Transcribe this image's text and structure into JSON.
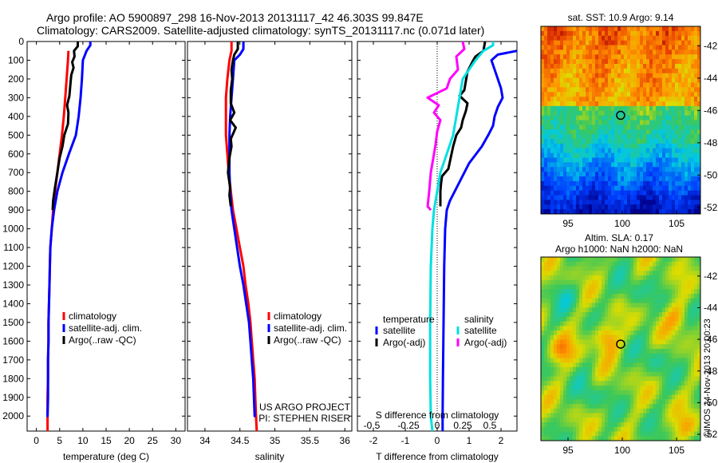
{
  "header": {
    "title_line1": "Argo profile: AO 5900897_298 16-Nov-2013 20131117_42 46.303S 99.847E",
    "title_line2": "Climatology: CARS2009. Satellite-adjusted climatology: synTS_20131117.nc (0.071d later)"
  },
  "chart_data": [
    {
      "type": "line",
      "xlabel": "temperature (deg C)",
      "ylabel": "",
      "xlim": [
        -2,
        32
      ],
      "ylim": [
        2080,
        0
      ],
      "xticks": [
        0,
        5,
        10,
        15,
        20,
        25,
        30
      ],
      "yticks": [
        0,
        100,
        200,
        300,
        400,
        500,
        600,
        700,
        800,
        900,
        1000,
        1100,
        1200,
        1300,
        1400,
        1500,
        1600,
        1700,
        1800,
        1900,
        2000
      ],
      "legend": [
        "climatology",
        "satellite-adj. clim.",
        "Argo(..raw -QC)"
      ],
      "series": [
        {
          "name": "climatology",
          "color": "#ff0000",
          "points": [
            [
              6.9,
              50
            ],
            [
              6.8,
              100
            ],
            [
              6.5,
              200
            ],
            [
              6.2,
              300
            ],
            [
              5.9,
              400
            ],
            [
              5.5,
              500
            ],
            [
              5.0,
              600
            ],
            [
              4.5,
              700
            ],
            [
              4.0,
              800
            ],
            [
              3.6,
              900
            ],
            [
              3.3,
              1000
            ],
            [
              3.0,
              1100
            ],
            [
              2.9,
              1200
            ],
            [
              2.8,
              1300
            ],
            [
              2.7,
              1400
            ],
            [
              2.6,
              1500
            ],
            [
              2.6,
              1600
            ],
            [
              2.5,
              1700
            ],
            [
              2.5,
              1800
            ],
            [
              2.4,
              1900
            ],
            [
              2.4,
              2000
            ],
            [
              2.4,
              2080
            ]
          ]
        },
        {
          "name": "satellite-adj. clim.",
          "color": "#0000ff",
          "points": [
            [
              11.6,
              0
            ],
            [
              11.6,
              20
            ],
            [
              10.8,
              50
            ],
            [
              10.0,
              100
            ],
            [
              9.8,
              200
            ],
            [
              9.5,
              300
            ],
            [
              9.1,
              400
            ],
            [
              8.5,
              500
            ],
            [
              7.0,
              600
            ],
            [
              5.6,
              700
            ],
            [
              4.5,
              800
            ],
            [
              3.8,
              900
            ],
            [
              3.3,
              1000
            ],
            [
              3.0,
              1100
            ],
            [
              2.9,
              1200
            ],
            [
              2.8,
              1300
            ],
            [
              2.7,
              1400
            ],
            [
              2.6,
              1500
            ],
            [
              2.6,
              1600
            ],
            [
              2.5,
              1700
            ],
            [
              2.5,
              1800
            ],
            [
              2.5,
              1900
            ],
            [
              2.4,
              2000
            ],
            [
              2.4,
              1970
            ]
          ]
        },
        {
          "name": "Argo(..raw -QC)",
          "color": "#000000",
          "points": [
            [
              8.9,
              0
            ],
            [
              8.9,
              25
            ],
            [
              8.1,
              50
            ],
            [
              8.2,
              80
            ],
            [
              7.7,
              110
            ],
            [
              8.0,
              140
            ],
            [
              7.5,
              180
            ],
            [
              7.3,
              230
            ],
            [
              7.1,
              290
            ],
            [
              6.6,
              340
            ],
            [
              6.9,
              380
            ],
            [
              6.8,
              440
            ],
            [
              6.0,
              500
            ],
            [
              5.6,
              560
            ],
            [
              5.0,
              620
            ],
            [
              4.5,
              700
            ],
            [
              4.0,
              780
            ],
            [
              3.6,
              850
            ],
            [
              3.5,
              900
            ]
          ]
        }
      ]
    },
    {
      "type": "line",
      "xlabel": "salinity",
      "ylabel": "",
      "xlim": [
        33.75,
        36.1
      ],
      "ylim": [
        2080,
        0
      ],
      "xticks": [
        34,
        34.5,
        35,
        35.5,
        36
      ],
      "legend": [
        "climatology",
        "satellite-adj. clim.",
        "Argo(..raw -QC)"
      ],
      "annotation_line1": "US ARGO PROJECT",
      "annotation_line2": "PI: STEPHEN RISER",
      "series": [
        {
          "name": "climatology",
          "color": "#ff0000",
          "points": [
            [
              34.38,
              0
            ],
            [
              34.38,
              50
            ],
            [
              34.35,
              100
            ],
            [
              34.32,
              200
            ],
            [
              34.3,
              300
            ],
            [
              34.3,
              400
            ],
            [
              34.3,
              500
            ],
            [
              34.32,
              600
            ],
            [
              34.34,
              700
            ],
            [
              34.37,
              800
            ],
            [
              34.4,
              900
            ],
            [
              34.45,
              1000
            ],
            [
              34.5,
              1100
            ],
            [
              34.55,
              1200
            ],
            [
              34.58,
              1300
            ],
            [
              34.62,
              1400
            ],
            [
              34.65,
              1500
            ],
            [
              34.67,
              1600
            ],
            [
              34.69,
              1700
            ],
            [
              34.71,
              1800
            ],
            [
              34.72,
              1900
            ],
            [
              34.73,
              2000
            ],
            [
              34.74,
              2080
            ]
          ]
        },
        {
          "name": "satellite-adj. clim.",
          "color": "#0000ff",
          "points": [
            [
              34.55,
              0
            ],
            [
              34.55,
              40
            ],
            [
              34.5,
              70
            ],
            [
              34.42,
              100
            ],
            [
              34.4,
              200
            ],
            [
              34.38,
              300
            ],
            [
              34.36,
              400
            ],
            [
              34.35,
              500
            ],
            [
              34.35,
              600
            ],
            [
              34.35,
              700
            ],
            [
              34.36,
              800
            ],
            [
              34.38,
              900
            ],
            [
              34.42,
              1000
            ],
            [
              34.46,
              1100
            ],
            [
              34.5,
              1200
            ],
            [
              34.55,
              1300
            ],
            [
              34.59,
              1400
            ],
            [
              34.63,
              1500
            ],
            [
              34.65,
              1600
            ],
            [
              34.67,
              1700
            ],
            [
              34.69,
              1800
            ],
            [
              34.7,
              1900
            ],
            [
              34.71,
              2000
            ],
            [
              34.71,
              1980
            ]
          ]
        },
        {
          "name": "Argo(..raw -QC)",
          "color": "#000000",
          "points": [
            [
              34.47,
              0
            ],
            [
              34.47,
              40
            ],
            [
              34.42,
              70
            ],
            [
              34.4,
              100
            ],
            [
              34.38,
              150
            ],
            [
              34.39,
              200
            ],
            [
              34.37,
              260
            ],
            [
              34.37,
              330
            ],
            [
              34.42,
              380
            ],
            [
              34.36,
              420
            ],
            [
              34.44,
              460
            ],
            [
              34.37,
              520
            ],
            [
              34.38,
              560
            ],
            [
              34.35,
              620
            ],
            [
              34.33,
              700
            ],
            [
              34.36,
              780
            ],
            [
              34.35,
              820
            ],
            [
              34.37,
              880
            ]
          ]
        }
      ]
    },
    {
      "type": "line",
      "xlabel": "T difference from climatology",
      "ylabel": "",
      "xlim": [
        -2.5,
        2.5
      ],
      "ylim": [
        2080,
        0
      ],
      "xticks": [
        -2,
        -1,
        0,
        1,
        2
      ],
      "top_xlabel": "S difference from climatology",
      "top_xticks": [
        "-0.5",
        "-0.25",
        "0",
        "0.25",
        "0.5"
      ],
      "legend_title_left": "temperature",
      "legend_title_right": "salinity",
      "legend": [
        "satellite",
        "Argo(-adj)",
        "satellite",
        "Argo(-adj)"
      ],
      "series": [
        {
          "name": "satellite",
          "color": "#0000ff",
          "points": [
            [
              2.5,
              50
            ],
            [
              1.9,
              70
            ],
            [
              1.7,
              100
            ],
            [
              1.8,
              150
            ],
            [
              1.9,
              200
            ],
            [
              2.0,
              250
            ],
            [
              2.05,
              300
            ],
            [
              1.9,
              350
            ],
            [
              1.8,
              400
            ],
            [
              1.75,
              450
            ],
            [
              1.6,
              500
            ],
            [
              1.4,
              560
            ],
            [
              1.0,
              650
            ],
            [
              0.7,
              750
            ],
            [
              0.4,
              850
            ],
            [
              0.3,
              900
            ],
            [
              0.25,
              1000
            ],
            [
              0.22,
              1200
            ],
            [
              0.2,
              1500
            ],
            [
              0.18,
              1800
            ],
            [
              0.17,
              2000
            ],
            [
              0.17,
              2080
            ]
          ]
        },
        {
          "name": "Argo(-adj)",
          "color": "#000000",
          "points": [
            [
              1.5,
              0
            ],
            [
              1.45,
              50
            ],
            [
              1.2,
              80
            ],
            [
              1.1,
              110
            ],
            [
              0.95,
              160
            ],
            [
              0.9,
              210
            ],
            [
              0.85,
              260
            ],
            [
              0.7,
              290
            ],
            [
              0.95,
              330
            ],
            [
              0.9,
              370
            ],
            [
              0.8,
              420
            ],
            [
              0.75,
              460
            ],
            [
              0.6,
              500
            ],
            [
              0.5,
              560
            ],
            [
              0.45,
              600
            ],
            [
              0.35,
              680
            ],
            [
              0.15,
              720
            ],
            [
              0.12,
              760
            ],
            [
              0.1,
              800
            ],
            [
              0.1,
              880
            ]
          ]
        },
        {
          "name": "satellite",
          "color": "#00e0e0",
          "points": [
            [
              1.75,
              0
            ],
            [
              1.75,
              20
            ],
            [
              1.45,
              50
            ],
            [
              1.2,
              100
            ],
            [
              0.8,
              200
            ],
            [
              0.7,
              300
            ],
            [
              0.6,
              400
            ],
            [
              0.5,
              500
            ],
            [
              0.3,
              600
            ],
            [
              0.1,
              700
            ],
            [
              0.0,
              800
            ],
            [
              -0.1,
              900
            ],
            [
              -0.15,
              1000
            ],
            [
              -0.2,
              1200
            ],
            [
              -0.22,
              1500
            ],
            [
              -0.22,
              1800
            ],
            [
              -0.2,
              2000
            ],
            [
              -0.15,
              2080
            ]
          ]
        },
        {
          "name": "Argo(-adj)",
          "color": "#ff00ff",
          "points": [
            [
              0.8,
              0
            ],
            [
              0.85,
              40
            ],
            [
              0.6,
              80
            ],
            [
              0.65,
              150
            ],
            [
              0.4,
              200
            ],
            [
              0.3,
              250
            ],
            [
              -0.3,
              300
            ],
            [
              0.05,
              340
            ],
            [
              -0.1,
              380
            ],
            [
              0.1,
              420
            ],
            [
              0.0,
              480
            ],
            [
              -0.05,
              550
            ],
            [
              -0.1,
              600
            ],
            [
              -0.2,
              700
            ],
            [
              -0.25,
              800
            ],
            [
              -0.3,
              880
            ],
            [
              -0.2,
              900
            ]
          ]
        }
      ]
    },
    {
      "type": "heatmap",
      "title": "sat. SST: 10.9 Argo: 9.14",
      "xlim": [
        92.5,
        107.2
      ],
      "ylim": [
        -52.4,
        -40.8
      ],
      "xticks": [
        95,
        100,
        105
      ],
      "yticks": [
        -42,
        -44,
        -46,
        -48,
        -50,
        -52
      ],
      "marker": {
        "lon": 99.847,
        "lat": -46.303
      }
    },
    {
      "type": "heatmap",
      "title_line1": "Altim. SLA: 0.17",
      "title_line2": "Argo h1000: NaN h2000: NaN",
      "xlim": [
        92.5,
        107.2
      ],
      "ylim": [
        -52.4,
        -40.8
      ],
      "xticks": [
        95,
        100,
        105
      ],
      "yticks": [
        -42,
        -44,
        -46,
        -48,
        -50,
        -52
      ],
      "marker": {
        "lon": 99.847,
        "lat": -46.303
      }
    }
  ],
  "side_note": "©IMOS 24-Nov-2013 20:00:23",
  "colors": {
    "accent_red": "#ff0000",
    "accent_blue": "#0000ff",
    "cyan": "#00e0e0",
    "magenta": "#ff00ff"
  }
}
